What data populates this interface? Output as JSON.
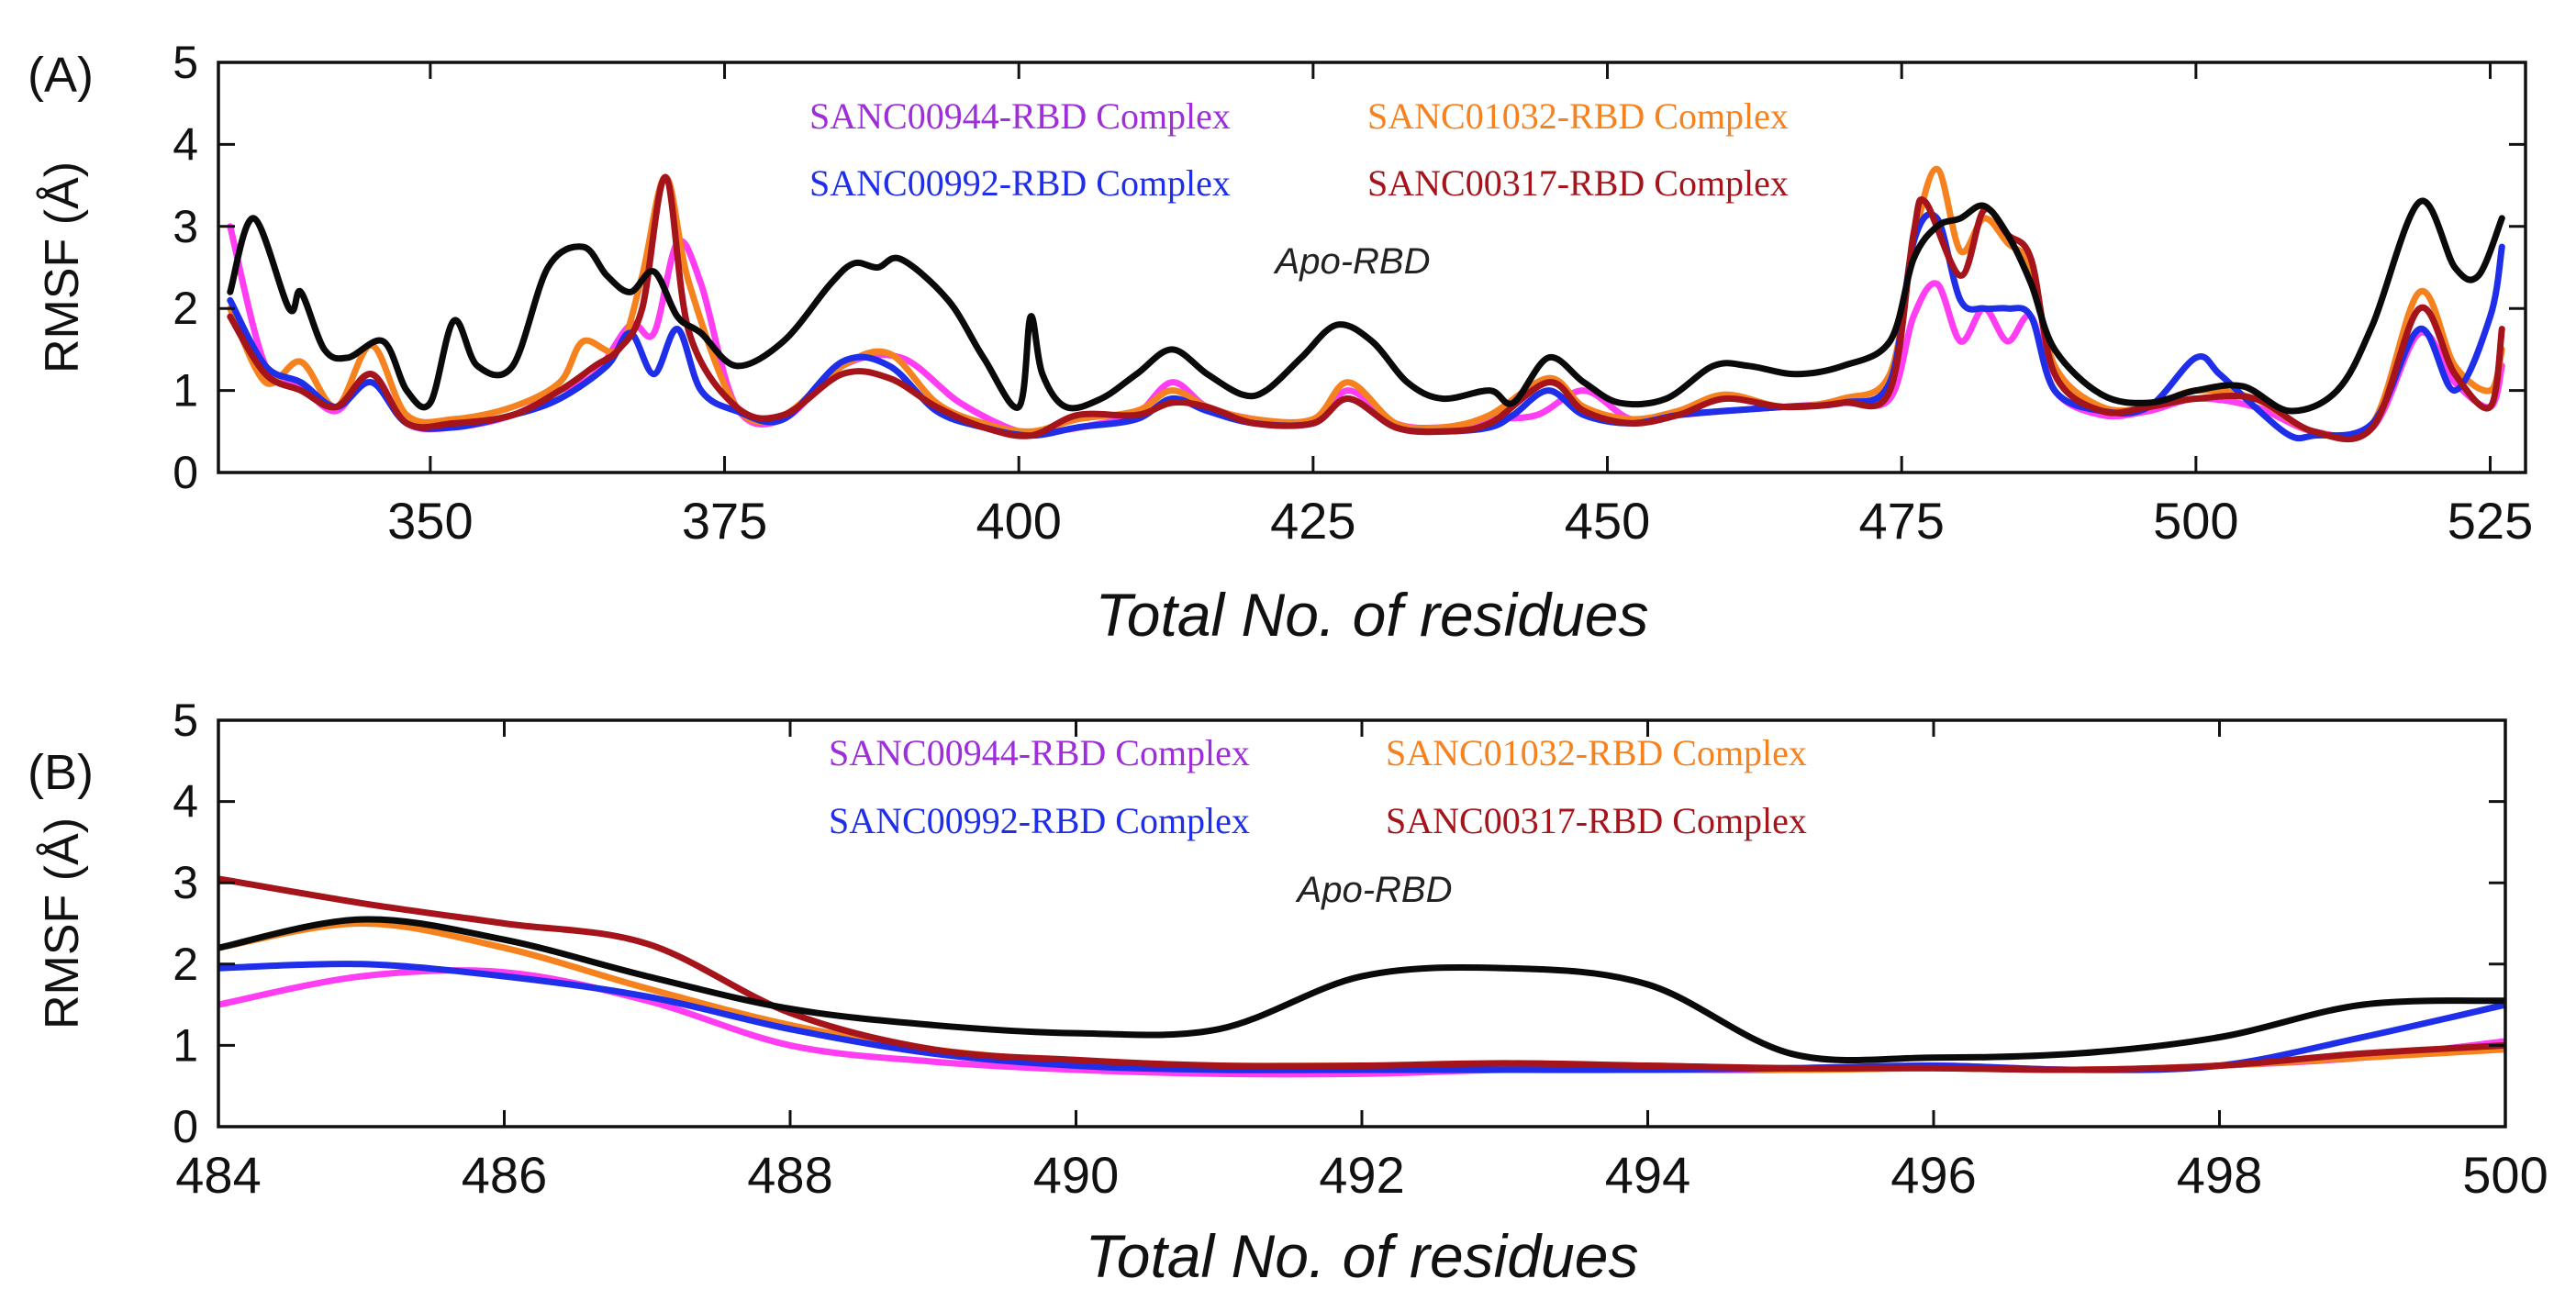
{
  "chart_data": [
    {
      "panel_label": "(A)",
      "type": "line",
      "xlabel": "Total No. of residues",
      "ylabel": "RMSF (Å)",
      "xlim": [
        332,
        528
      ],
      "ylim": [
        0,
        5
      ],
      "xticks": [
        350,
        375,
        400,
        425,
        450,
        475,
        500,
        525
      ],
      "yticks": [
        0,
        1,
        2,
        3,
        4,
        5
      ],
      "annotation": "Apo-RBD",
      "series": [
        {
          "name": "SANC00944-RBD Complex",
          "color": "#FF3DF2",
          "label_color": "#9D2ED8",
          "x": [
            333,
            336,
            339,
            342,
            345,
            348,
            352,
            357,
            361,
            364,
            367,
            369,
            371,
            373,
            376,
            380,
            385,
            390,
            395,
            400,
            403,
            407,
            410,
            413,
            416,
            420,
            425,
            428,
            432,
            436,
            440,
            444,
            448,
            452,
            456,
            460,
            465,
            470,
            474,
            476,
            478,
            480,
            482,
            484,
            486,
            488,
            492,
            496,
            500,
            505,
            510,
            515,
            519,
            522,
            525,
            526
          ],
          "y": [
            3.0,
            1.3,
            1.05,
            0.75,
            1.2,
            0.6,
            0.55,
            0.7,
            1.0,
            1.2,
            1.8,
            1.7,
            2.8,
            2.3,
            0.8,
            0.65,
            1.3,
            1.4,
            0.85,
            0.5,
            0.5,
            0.6,
            0.7,
            1.1,
            0.8,
            0.65,
            0.6,
            1.0,
            0.6,
            0.55,
            0.65,
            0.7,
            1.0,
            0.65,
            0.7,
            0.75,
            0.8,
            0.85,
            0.9,
            1.9,
            2.3,
            1.6,
            2.0,
            1.6,
            1.9,
            1.0,
            0.7,
            0.75,
            0.9,
            0.8,
            0.5,
            0.55,
            1.7,
            1.1,
            0.8,
            1.3
          ]
        },
        {
          "name": "SANC01032-RBD Complex",
          "color": "#F5821F",
          "label_color": "#F5821F",
          "x": [
            333,
            336,
            339,
            342,
            345,
            348,
            352,
            357,
            361,
            363,
            366,
            368,
            370,
            372,
            376,
            380,
            385,
            389,
            393,
            397,
            401,
            405,
            410,
            413,
            416,
            420,
            425,
            428,
            432,
            436,
            440,
            445,
            448,
            452,
            456,
            460,
            465,
            470,
            474,
            476,
            478,
            480,
            482,
            484,
            486,
            488,
            492,
            496,
            500,
            505,
            510,
            515,
            519,
            522,
            525,
            526
          ],
          "y": [
            2.0,
            1.1,
            1.35,
            0.8,
            1.55,
            0.7,
            0.65,
            0.8,
            1.1,
            1.6,
            1.5,
            2.4,
            3.6,
            2.3,
            0.8,
            0.7,
            1.3,
            1.45,
            0.85,
            0.6,
            0.5,
            0.65,
            0.75,
            1.0,
            0.8,
            0.65,
            0.65,
            1.1,
            0.6,
            0.55,
            0.7,
            1.15,
            0.8,
            0.65,
            0.75,
            0.95,
            0.8,
            0.9,
            1.2,
            2.8,
            3.7,
            2.7,
            3.1,
            2.8,
            2.5,
            1.3,
            0.8,
            0.8,
            1.0,
            0.9,
            0.5,
            0.6,
            2.2,
            1.3,
            1.0,
            1.5
          ]
        },
        {
          "name": "SANC00992-RBD Complex",
          "color": "#1F2EE8",
          "label_color": "#1F2EE8",
          "x": [
            333,
            336,
            339,
            342,
            345,
            348,
            352,
            357,
            361,
            365,
            367,
            369,
            371,
            373,
            376,
            380,
            385,
            389,
            393,
            397,
            401,
            405,
            410,
            413,
            416,
            420,
            425,
            428,
            432,
            436,
            440,
            442,
            445,
            448,
            452,
            456,
            460,
            465,
            470,
            474,
            476,
            478,
            480,
            482,
            484,
            486,
            488,
            492,
            496,
            500,
            502,
            505,
            508,
            510,
            515,
            519,
            522,
            525,
            526
          ],
          "y": [
            2.1,
            1.3,
            1.1,
            0.8,
            1.1,
            0.6,
            0.55,
            0.7,
            0.9,
            1.3,
            1.7,
            1.2,
            1.75,
            1.0,
            0.75,
            0.65,
            1.35,
            1.3,
            0.75,
            0.55,
            0.45,
            0.55,
            0.65,
            0.9,
            0.75,
            0.6,
            0.6,
            0.9,
            0.55,
            0.5,
            0.55,
            0.7,
            1.0,
            0.7,
            0.6,
            0.7,
            0.75,
            0.8,
            0.85,
            1.1,
            2.8,
            3.1,
            2.1,
            2.0,
            2.0,
            1.9,
            1.0,
            0.75,
            0.8,
            1.4,
            1.2,
            0.8,
            0.45,
            0.45,
            0.6,
            1.75,
            1.0,
            1.9,
            2.75
          ]
        },
        {
          "name": "SANC00317-RBD Complex",
          "color": "#A5141A",
          "label_color": "#A5141A",
          "x": [
            333,
            336,
            339,
            342,
            345,
            348,
            352,
            357,
            361,
            364,
            366,
            368,
            370,
            372,
            376,
            380,
            385,
            389,
            393,
            397,
            401,
            405,
            410,
            413,
            416,
            420,
            425,
            428,
            432,
            436,
            440,
            445,
            448,
            452,
            456,
            460,
            465,
            470,
            474,
            476,
            477,
            480,
            482,
            484,
            486,
            488,
            492,
            496,
            500,
            505,
            510,
            515,
            519,
            522,
            525,
            526
          ],
          "y": [
            1.9,
            1.2,
            1.0,
            0.8,
            1.2,
            0.6,
            0.6,
            0.7,
            1.0,
            1.3,
            1.5,
            2.0,
            3.6,
            1.7,
            0.8,
            0.7,
            1.2,
            1.15,
            0.8,
            0.55,
            0.45,
            0.7,
            0.7,
            0.85,
            0.8,
            0.6,
            0.6,
            0.9,
            0.55,
            0.5,
            0.6,
            1.1,
            0.75,
            0.6,
            0.7,
            0.9,
            0.8,
            0.85,
            1.0,
            2.9,
            3.3,
            2.4,
            3.2,
            2.9,
            2.6,
            1.2,
            0.75,
            0.8,
            0.9,
            0.9,
            0.5,
            0.55,
            2.0,
            1.2,
            0.8,
            1.75
          ]
        },
        {
          "name": "Apo-RBD",
          "color": "#0A0A0A",
          "label_color": "#222222",
          "x": [
            333,
            335,
            338,
            339,
            341,
            343,
            346,
            348,
            350,
            352,
            354,
            357,
            360,
            363,
            365,
            367,
            369,
            371,
            373,
            376,
            380,
            384,
            386,
            388,
            390,
            394,
            397,
            400,
            401,
            402,
            404,
            407,
            410,
            413,
            416,
            419,
            421,
            424,
            427,
            430,
            433,
            436,
            440,
            442,
            445,
            448,
            451,
            455,
            459,
            462,
            466,
            470,
            474,
            476,
            478,
            480,
            482,
            484,
            486,
            488,
            492,
            496,
            500,
            504,
            508,
            512,
            515,
            519,
            522,
            524,
            526
          ],
          "y": [
            2.2,
            3.1,
            2.0,
            2.2,
            1.5,
            1.4,
            1.6,
            1.0,
            0.85,
            1.85,
            1.3,
            1.3,
            2.5,
            2.75,
            2.4,
            2.2,
            2.45,
            1.9,
            1.7,
            1.3,
            1.6,
            2.3,
            2.55,
            2.5,
            2.6,
            2.1,
            1.4,
            0.8,
            1.9,
            1.2,
            0.8,
            0.9,
            1.2,
            1.5,
            1.2,
            0.95,
            1.0,
            1.4,
            1.8,
            1.6,
            1.1,
            0.9,
            1.0,
            0.85,
            1.4,
            1.1,
            0.85,
            0.9,
            1.3,
            1.3,
            1.2,
            1.3,
            1.6,
            2.6,
            3.0,
            3.1,
            3.25,
            2.9,
            2.3,
            1.5,
            0.95,
            0.85,
            1.0,
            1.05,
            0.75,
            1.0,
            1.8,
            3.3,
            2.5,
            2.4,
            3.1
          ]
        }
      ]
    },
    {
      "panel_label": "(B)",
      "type": "line",
      "xlabel": "Total No. of residues",
      "ylabel": "RMSF (Å)",
      "xlim": [
        484,
        500
      ],
      "ylim": [
        0,
        5
      ],
      "xticks": [
        484,
        486,
        488,
        490,
        492,
        494,
        496,
        498,
        500
      ],
      "yticks": [
        0,
        1,
        2,
        3,
        4,
        5
      ],
      "annotation": "Apo-RBD",
      "series": [
        {
          "name": "SANC00944-RBD Complex",
          "color": "#FF3DF2",
          "label_color": "#9D2ED8",
          "x": [
            484,
            485,
            486,
            487,
            488,
            489,
            490,
            491,
            492,
            493,
            494,
            495,
            496,
            497,
            498,
            499,
            500
          ],
          "y": [
            1.5,
            1.85,
            1.9,
            1.55,
            1.0,
            0.8,
            0.7,
            0.65,
            0.65,
            0.7,
            0.7,
            0.7,
            0.75,
            0.7,
            0.75,
            0.85,
            1.05
          ]
        },
        {
          "name": "SANC01032-RBD Complex",
          "color": "#F5821F",
          "label_color": "#F5821F",
          "x": [
            484,
            485,
            486,
            487,
            488,
            489,
            490,
            491,
            492,
            493,
            494,
            495,
            496,
            497,
            498,
            499,
            500
          ],
          "y": [
            2.2,
            2.5,
            2.2,
            1.7,
            1.25,
            0.95,
            0.8,
            0.75,
            0.75,
            0.75,
            0.75,
            0.7,
            0.72,
            0.7,
            0.75,
            0.85,
            0.95
          ]
        },
        {
          "name": "SANC00992-RBD Complex",
          "color": "#1F2EE8",
          "label_color": "#1F2EE8",
          "x": [
            484,
            485,
            486,
            487,
            488,
            489,
            490,
            491,
            492,
            493,
            494,
            495,
            496,
            497,
            498,
            499,
            500
          ],
          "y": [
            1.95,
            2.0,
            1.85,
            1.6,
            1.2,
            0.9,
            0.75,
            0.7,
            0.7,
            0.7,
            0.7,
            0.72,
            0.75,
            0.7,
            0.75,
            1.1,
            1.5
          ]
        },
        {
          "name": "SANC00317-RBD Complex",
          "color": "#A5141A",
          "label_color": "#A5141A",
          "x": [
            484,
            485,
            486,
            487,
            488,
            489,
            490,
            491,
            492,
            493,
            494,
            495,
            496,
            497,
            498,
            499,
            500
          ],
          "y": [
            3.05,
            2.75,
            2.5,
            2.25,
            1.4,
            0.95,
            0.82,
            0.75,
            0.75,
            0.78,
            0.75,
            0.72,
            0.72,
            0.7,
            0.75,
            0.9,
            1.0
          ]
        },
        {
          "name": "Apo-RBD",
          "color": "#0A0A0A",
          "label_color": "#222222",
          "x": [
            484,
            485,
            486,
            487,
            488,
            489,
            490,
            491,
            492,
            493,
            494,
            495,
            496,
            497,
            498,
            499,
            500
          ],
          "y": [
            2.2,
            2.55,
            2.3,
            1.85,
            1.45,
            1.25,
            1.15,
            1.2,
            1.85,
            1.95,
            1.75,
            0.9,
            0.85,
            0.9,
            1.1,
            1.5,
            1.55
          ]
        }
      ]
    }
  ]
}
